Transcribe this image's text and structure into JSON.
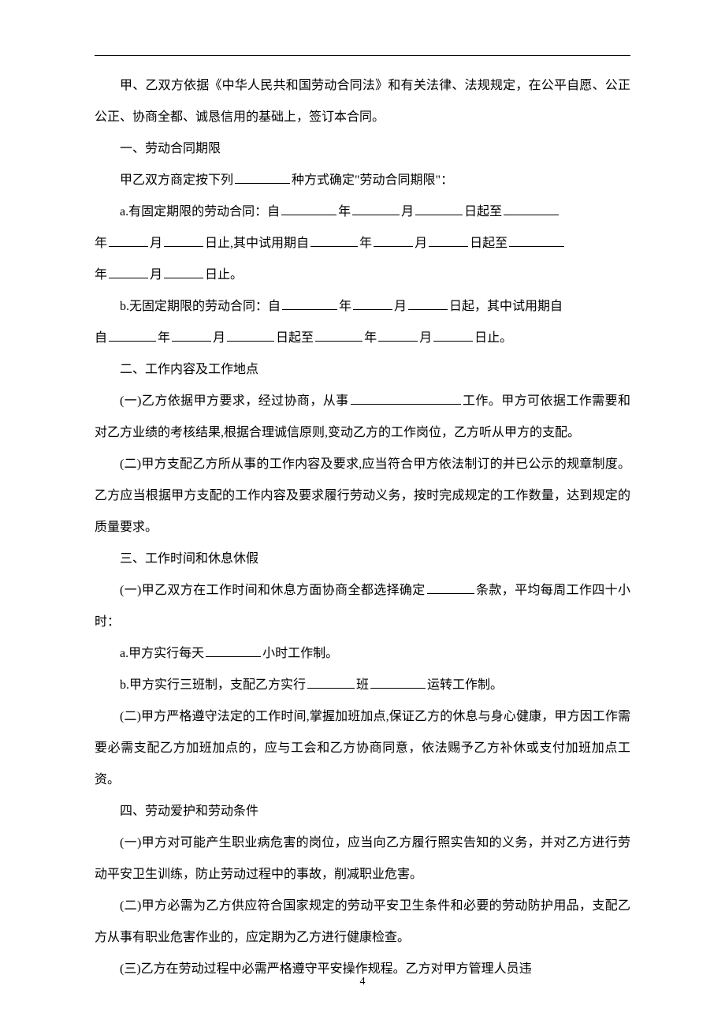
{
  "text_color": "#000000",
  "background_color": "#ffffff",
  "page_number": "4",
  "p1": "甲、乙双方依据《中华人民共和国劳动合同法》和有关法律、法规规定，在公平自愿、公正公正、协商全都、诚恳信用的基础上，签订本合同。",
  "s1_title": "一、劳动合同期限",
  "s1_line1_a": "甲乙双方商定按下列",
  "s1_line1_b": "种方式确定\"劳动合同期限\"：",
  "s1_a": {
    "t1": "a.有固定期限的劳动合同：自",
    "y": "年",
    "m": "月",
    "d": "日起至",
    "t2": "日止,其中试用期自",
    "d2": "日起至",
    "t3": "日止。"
  },
  "s1_b": {
    "t1": "b.无固定期限的劳动合同：自",
    "y": "年",
    "m": "月",
    "d1": "日起，其中试用期自",
    "d2": "日起至",
    "t3": "日止。"
  },
  "s2_title": "二、工作内容及工作地点",
  "s2_p1a": "(一)乙方依据甲方要求，经过协商，从事",
  "s2_p1b": "工作。甲方可依据工作需要和对乙方业绩的考核结果,根据合理诚信原则,变动乙方的工作岗位，乙方听从甲方的支配。",
  "s2_p2": "(二)甲方支配乙方所从事的工作内容及要求,应当符合甲方依法制订的并已公示的规章制度。乙方应当根据甲方支配的工作内容及要求履行劳动义务，按时完成规定的工作数量，达到规定的质量要求。",
  "s3_title": "三、工作时间和休息休假",
  "s3_p1a": "(一)甲乙双方在工作时间和休息方面协商全都选择确定",
  "s3_p1b": "条款，平均每周工作四十小时：",
  "s3_a1": "a.甲方实行每天",
  "s3_a2": "小时工作制。",
  "s3_b1": "b.甲方实行三班制，支配乙方实行",
  "s3_b2": "班",
  "s3_b3": "运转工作制。",
  "s3_p2": "(二)甲方严格遵守法定的工作时间,掌握加班加点,保证乙方的休息与身心健康，甲方因工作需要必需支配乙方加班加点的，应与工会和乙方协商同意，依法赐予乙方补休或支付加班加点工资。",
  "s4_title": "四、劳动爱护和劳动条件",
  "s4_p1": "(一)甲方对可能产生职业病危害的岗位，应当向乙方履行照实告知的义务，并对乙方进行劳动平安卫生训练，防止劳动过程中的事故，削减职业危害。",
  "s4_p2": "(二)甲方必需为乙方供应符合国家规定的劳动平安卫生条件和必要的劳动防护用品，支配乙方从事有职业危害作业的，应定期为乙方进行健康检查。",
  "s4_p3": "(三)乙方在劳动过程中必需严格遵守平安操作规程。乙方对甲方管理人员违"
}
